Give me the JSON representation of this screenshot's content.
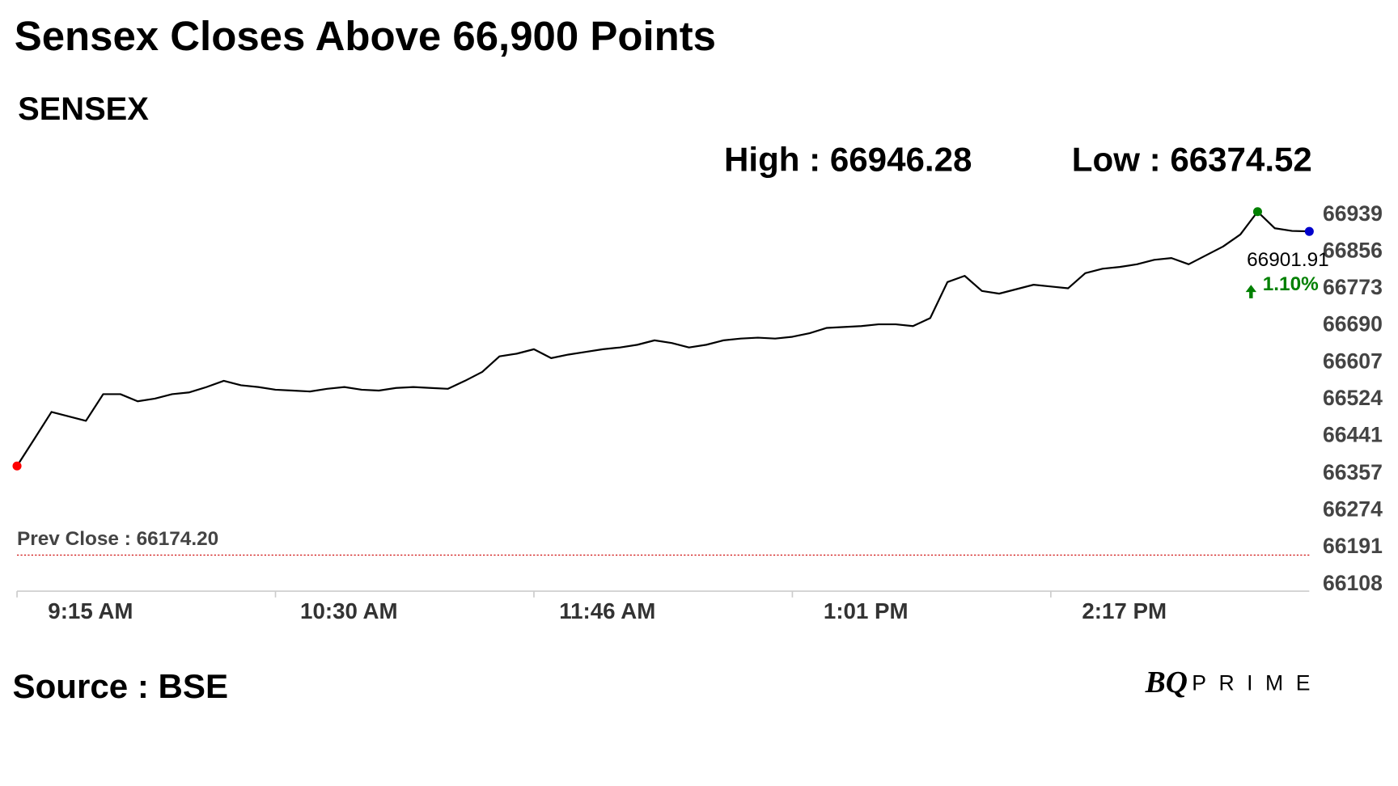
{
  "chart_data": {
    "type": "line",
    "title": "Sensex Closes Above 66,900 Points",
    "subtitle": "SENSEX",
    "annotations": [
      "High : 66946.28",
      "Low : 66374.52"
    ],
    "categories": [
      "9:15 AM",
      null,
      null,
      null,
      null,
      null,
      null,
      null,
      null,
      null,
      null,
      null,
      null,
      null,
      null,
      "10:30 AM",
      null,
      null,
      null,
      null,
      null,
      null,
      null,
      null,
      null,
      null,
      null,
      null,
      null,
      null,
      "11:46 AM",
      null,
      null,
      null,
      null,
      null,
      null,
      null,
      null,
      null,
      null,
      null,
      null,
      null,
      null,
      "1:01 PM",
      null,
      null,
      null,
      null,
      null,
      null,
      null,
      null,
      null,
      null,
      null,
      null,
      null,
      null,
      "2:17 PM",
      null,
      null,
      null,
      null,
      null,
      null,
      null,
      null,
      null,
      null,
      null,
      null,
      null,
      null,
      null
    ],
    "series": [
      {
        "name": "SENSEX",
        "color": "#000000",
        "values": [
          66374.52,
          66435,
          66496,
          66486,
          66476,
          66536,
          66536,
          66520,
          66526,
          66536,
          66540,
          66552,
          66566,
          66556,
          66552,
          66546,
          66544,
          66542,
          66548,
          66552,
          66546,
          66544,
          66550,
          66552,
          66550,
          66548,
          66566,
          66586,
          66621,
          66627,
          66637,
          66617,
          66625,
          66631,
          66637,
          66641,
          66647,
          66657,
          66651,
          66641,
          66647,
          66657,
          66661,
          66663,
          66661,
          66665,
          66673,
          66685,
          66687,
          66689,
          66693,
          66693,
          66689,
          66707,
          66788,
          66802,
          66768,
          66762,
          66772,
          66782,
          66778,
          66774,
          66808,
          66818,
          66822,
          66828,
          66838,
          66842,
          66828,
          66848,
          66868,
          66895,
          66946.28,
          66909,
          66903,
          66901.91
        ]
      }
    ],
    "change_label": "1.10%",
    "change_color": "#008000",
    "low_marker_color": "#ff0000",
    "high_marker_color": "#008000",
    "end_marker_color": "#0000cc",
    "prev_close": {
      "value": 66174.2,
      "label": "Prev Close : 66174.20"
    },
    "prev_close_color": "#cc0000",
    "ylim": [
      66093,
      66959
    ],
    "yticks": [
      66939,
      66856,
      66773,
      66690,
      66607,
      66524,
      66441,
      66357,
      66274,
      66191,
      66108
    ],
    "grid": false,
    "source": "Source : BSE",
    "logo": {
      "mark": "BQ",
      "word": "PRIME"
    }
  }
}
